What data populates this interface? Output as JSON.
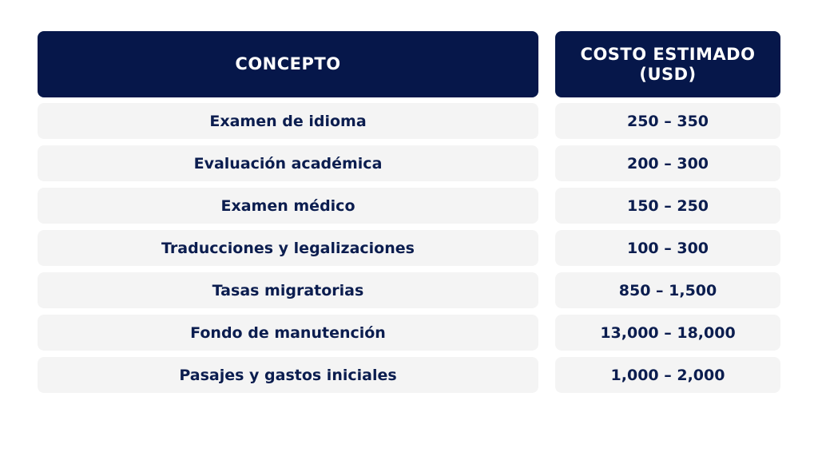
{
  "table": {
    "headers": {
      "concept": "CONCEPTO",
      "cost": "COSTO ESTIMADO (USD)"
    },
    "rows": [
      {
        "concept": "Examen de idioma",
        "cost": "250 – 350"
      },
      {
        "concept": "Evaluación académica",
        "cost": "200 – 300"
      },
      {
        "concept": "Examen médico",
        "cost": "150 – 250"
      },
      {
        "concept": "Traducciones y legalizaciones",
        "cost": "100 – 300"
      },
      {
        "concept": "Tasas migratorias",
        "cost": "850 – 1,500"
      },
      {
        "concept": "Fondo de manutención",
        "cost": "13,000 – 18,000"
      },
      {
        "concept": "Pasajes y gastos iniciales",
        "cost": "1,000 – 2,000"
      }
    ]
  },
  "colors": {
    "header_bg": "#06174a",
    "header_text": "#ffffff",
    "row_bg": "#f4f4f4",
    "row_text": "#0b1d4f"
  }
}
